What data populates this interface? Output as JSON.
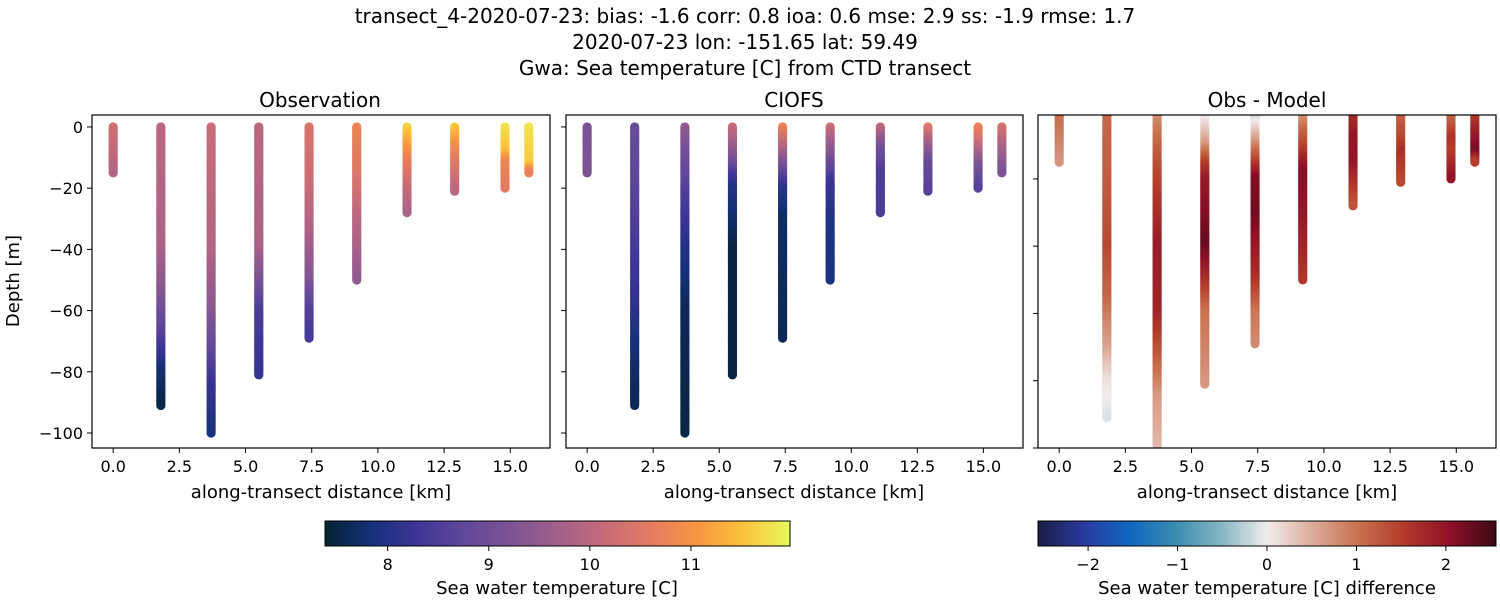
{
  "title": {
    "line1": "transect_4-2020-07-23: bias: -1.6  corr: 0.8  ioa: 0.6  mse: 2.9  ss: -1.9  rmse: 1.7",
    "line2": "2020-07-23 lon: -151.65 lat: 59.49",
    "line3": "Gwa: Sea temperature [C] from CTD transect"
  },
  "colors": {
    "thermal": [
      "#042333",
      "#15317a",
      "#3e3597",
      "#61489a",
      "#7d5394",
      "#a0608b",
      "#c66b7a",
      "#e47b61",
      "#f89542",
      "#fbc23b",
      "#e8fa5b"
    ],
    "balance": [
      "#181c43",
      "#2a3aa0",
      "#0f67c0",
      "#3b8cb0",
      "#84b6c1",
      "#f1ecec",
      "#dcab9a",
      "#c8704f",
      "#b23a2a",
      "#8e1028",
      "#3c0912"
    ]
  },
  "chart_data": [
    {
      "type": "scatter",
      "title": "Observation",
      "xlabel": "along-transect distance [km]",
      "ylabel": "Depth [m]",
      "xlim": [
        -0.8,
        16.5
      ],
      "ylim": [
        -104.9,
        3.9
      ],
      "xticks": [
        "0.0",
        "2.5",
        "5.0",
        "7.5",
        "10.0",
        "12.5",
        "15.0"
      ],
      "yticks": [
        "0",
        "−20",
        "−40",
        "−60",
        "−80",
        "−100"
      ],
      "colormap": "thermal",
      "clim": [
        7.38,
        11.98
      ],
      "profiles": [
        {
          "x": 0.0,
          "depth_values": [
            [
              0,
              10.3
            ],
            [
              -15,
              9.9
            ]
          ]
        },
        {
          "x": 1.8,
          "depth_values": [
            [
              0,
              10.0
            ],
            [
              -40,
              9.8
            ],
            [
              -55,
              9.3
            ],
            [
              -70,
              8.5
            ],
            [
              -80,
              7.8
            ],
            [
              -91,
              7.5
            ]
          ]
        },
        {
          "x": 3.7,
          "depth_values": [
            [
              0,
              10.2
            ],
            [
              -40,
              9.9
            ],
            [
              -60,
              9.4
            ],
            [
              -75,
              8.7
            ],
            [
              -85,
              8.2
            ],
            [
              -100,
              7.9
            ]
          ]
        },
        {
          "x": 5.5,
          "depth_values": [
            [
              0,
              10.0
            ],
            [
              -40,
              9.8
            ],
            [
              -50,
              9.2
            ],
            [
              -60,
              8.5
            ],
            [
              -81,
              8.2
            ]
          ]
        },
        {
          "x": 7.4,
          "depth_values": [
            [
              0,
              10.4
            ],
            [
              -20,
              10.2
            ],
            [
              -35,
              9.8
            ],
            [
              -50,
              9.3
            ],
            [
              -60,
              8.6
            ],
            [
              -69,
              8.4
            ]
          ]
        },
        {
          "x": 9.2,
          "depth_values": [
            [
              0,
              10.8
            ],
            [
              -15,
              10.5
            ],
            [
              -30,
              10.0
            ],
            [
              -50,
              9.5
            ]
          ]
        },
        {
          "x": 11.1,
          "depth_values": [
            [
              0,
              11.7
            ],
            [
              -10,
              10.8
            ],
            [
              -20,
              10.2
            ],
            [
              -28,
              9.8
            ]
          ]
        },
        {
          "x": 12.9,
          "depth_values": [
            [
              0,
              11.6
            ],
            [
              -8,
              10.8
            ],
            [
              -21,
              10.0
            ]
          ]
        },
        {
          "x": 14.8,
          "depth_values": [
            [
              0,
              11.8
            ],
            [
              -8,
              11.5
            ],
            [
              -12,
              10.8
            ],
            [
              -20,
              10.6
            ]
          ]
        },
        {
          "x": 15.7,
          "depth_values": [
            [
              0,
              11.8
            ],
            [
              -12,
              11.6
            ],
            [
              -15,
              10.7
            ]
          ]
        }
      ]
    },
    {
      "type": "scatter",
      "title": "CIOFS",
      "xlabel": "along-transect distance [km]",
      "xlim": [
        -0.8,
        16.5
      ],
      "ylim": [
        -104.9,
        3.9
      ],
      "xticks": [
        "0.0",
        "2.5",
        "5.0",
        "7.5",
        "10.0",
        "12.5",
        "15.0"
      ],
      "colormap": "thermal",
      "clim": [
        7.38,
        11.98
      ],
      "profiles": [
        {
          "x": 0.0,
          "depth_values": [
            [
              0,
              9.2
            ],
            [
              -15,
              9.2
            ]
          ]
        },
        {
          "x": 1.8,
          "depth_values": [
            [
              0,
              8.9
            ],
            [
              -20,
              8.7
            ],
            [
              -40,
              8.4
            ],
            [
              -60,
              8.1
            ],
            [
              -80,
              7.7
            ],
            [
              -91,
              7.6
            ]
          ]
        },
        {
          "x": 3.7,
          "depth_values": [
            [
              0,
              9.5
            ],
            [
              -10,
              9.0
            ],
            [
              -20,
              8.6
            ],
            [
              -30,
              8.3
            ],
            [
              -40,
              8.0
            ],
            [
              -60,
              7.6
            ],
            [
              -100,
              7.5
            ]
          ]
        },
        {
          "x": 5.5,
          "depth_values": [
            [
              0,
              10.2
            ],
            [
              -10,
              9.3
            ],
            [
              -15,
              8.5
            ],
            [
              -20,
              8.0
            ],
            [
              -40,
              7.5
            ],
            [
              -81,
              7.5
            ]
          ]
        },
        {
          "x": 7.4,
          "depth_values": [
            [
              0,
              10.8
            ],
            [
              -8,
              9.8
            ],
            [
              -15,
              8.8
            ],
            [
              -20,
              8.1
            ],
            [
              -30,
              7.7
            ],
            [
              -69,
              7.6
            ]
          ]
        },
        {
          "x": 9.2,
          "depth_values": [
            [
              0,
              10.2
            ],
            [
              -10,
              9.2
            ],
            [
              -18,
              8.3
            ],
            [
              -30,
              8.0
            ],
            [
              -50,
              7.9
            ]
          ]
        },
        {
          "x": 11.1,
          "depth_values": [
            [
              0,
              10.1
            ],
            [
              -8,
              9.0
            ],
            [
              -15,
              8.5
            ],
            [
              -28,
              8.5
            ]
          ]
        },
        {
          "x": 12.9,
          "depth_values": [
            [
              0,
              10.6
            ],
            [
              -5,
              9.8
            ],
            [
              -12,
              8.9
            ],
            [
              -21,
              8.6
            ]
          ]
        },
        {
          "x": 14.8,
          "depth_values": [
            [
              0,
              10.8
            ],
            [
              -5,
              10.3
            ],
            [
              -12,
              9.3
            ],
            [
              -20,
              8.6
            ]
          ]
        },
        {
          "x": 15.7,
          "depth_values": [
            [
              0,
              10.4
            ],
            [
              -8,
              9.7
            ],
            [
              -15,
              9.2
            ]
          ]
        }
      ]
    },
    {
      "type": "scatter",
      "title": "Obs - Model",
      "xlabel": "along-transect distance [km]",
      "xlim": [
        -0.8,
        16.5
      ],
      "ylim": [
        -100,
        -1
      ],
      "xticks": [
        "0.0",
        "2.5",
        "5.0",
        "7.5",
        "10.0",
        "12.5",
        "15.0"
      ],
      "colormap": "balance",
      "clim": [
        -2.56,
        2.56
      ],
      "values_from": "Observation minus CIOFS"
    }
  ],
  "colorbars": [
    {
      "label": "Sea water temperature [C]",
      "ticks": [
        "8",
        "9",
        "10",
        "11"
      ],
      "tick_values": [
        8,
        9,
        10,
        11
      ],
      "range": [
        7.38,
        11.98
      ],
      "colormap": "thermal"
    },
    {
      "label": "Sea water temperature [C] difference",
      "ticks": [
        "−2",
        "−1",
        "0",
        "1",
        "2"
      ],
      "tick_values": [
        -2,
        -1,
        0,
        1,
        2
      ],
      "range": [
        -2.56,
        2.56
      ],
      "colormap": "balance"
    }
  ]
}
